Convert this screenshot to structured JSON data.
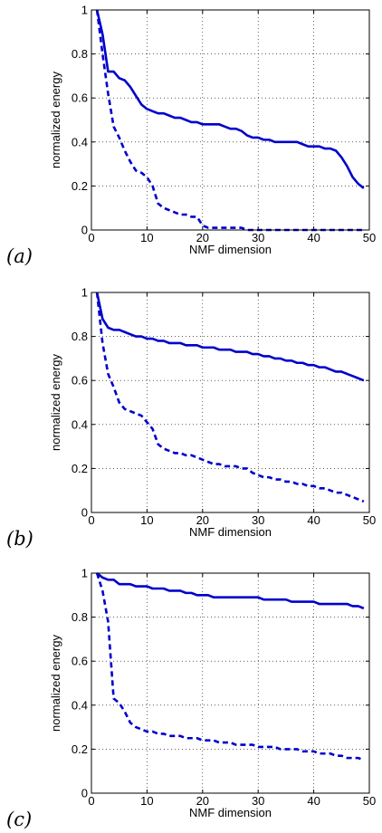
{
  "chart_data": [
    {
      "type": "line",
      "panel_label": "(a)",
      "xlabel": "NMF dimension",
      "ylabel": "normalized energy",
      "xlim": [
        0,
        50
      ],
      "ylim": [
        0,
        1
      ],
      "xticks": [
        "0",
        "10",
        "20",
        "30",
        "40",
        "50"
      ],
      "yticks": [
        "0",
        "0.2",
        "0.4",
        "0.6",
        "0.8",
        "1"
      ],
      "grid": true,
      "series": [
        {
          "style": "solid",
          "color": "#0000cc",
          "x": [
            1,
            2,
            3,
            4,
            5,
            6,
            7,
            8,
            9,
            10,
            11,
            12,
            13,
            14,
            15,
            16,
            17,
            18,
            19,
            20,
            21,
            22,
            23,
            24,
            25,
            26,
            27,
            28,
            29,
            30,
            31,
            32,
            33,
            34,
            35,
            36,
            37,
            38,
            39,
            40,
            41,
            42,
            43,
            44,
            45,
            46,
            47,
            48,
            49
          ],
          "values": [
            1.0,
            0.89,
            0.72,
            0.72,
            0.69,
            0.68,
            0.65,
            0.61,
            0.57,
            0.55,
            0.54,
            0.53,
            0.53,
            0.52,
            0.51,
            0.51,
            0.5,
            0.49,
            0.49,
            0.48,
            0.48,
            0.48,
            0.48,
            0.47,
            0.46,
            0.46,
            0.45,
            0.43,
            0.42,
            0.42,
            0.41,
            0.41,
            0.4,
            0.4,
            0.4,
            0.4,
            0.4,
            0.39,
            0.38,
            0.38,
            0.38,
            0.37,
            0.37,
            0.36,
            0.33,
            0.29,
            0.24,
            0.21,
            0.19
          ]
        },
        {
          "style": "dashed",
          "color": "#0000cc",
          "x": [
            1,
            2,
            3,
            4,
            5,
            6,
            7,
            8,
            9,
            10,
            11,
            12,
            13,
            14,
            15,
            16,
            17,
            18,
            19,
            20,
            21,
            22,
            23,
            24,
            25,
            26,
            27,
            28,
            29,
            30,
            31,
            32,
            33,
            34,
            35,
            36,
            37,
            38,
            39,
            40,
            41,
            42,
            43,
            44,
            45,
            46,
            47,
            48,
            49
          ],
          "values": [
            1.0,
            0.8,
            0.62,
            0.47,
            0.42,
            0.36,
            0.31,
            0.27,
            0.26,
            0.24,
            0.2,
            0.12,
            0.1,
            0.09,
            0.08,
            0.07,
            0.07,
            0.06,
            0.06,
            0.02,
            0.01,
            0.01,
            0.01,
            0.01,
            0.01,
            0.01,
            0.01,
            0.0,
            0.0,
            0.0,
            0.0,
            0.0,
            0.0,
            0.0,
            0.0,
            0.0,
            0.0,
            0.0,
            0.0,
            0.0,
            0.0,
            0.0,
            0.0,
            0.0,
            0.0,
            0.0,
            0.0,
            0.0,
            0.0
          ]
        }
      ]
    },
    {
      "type": "line",
      "panel_label": "(b)",
      "xlabel": "NMF dimension",
      "ylabel": "normalized energy",
      "xlim": [
        0,
        50
      ],
      "ylim": [
        0,
        1
      ],
      "xticks": [
        "0",
        "10",
        "20",
        "30",
        "40",
        "50"
      ],
      "yticks": [
        "0",
        "0.2",
        "0.4",
        "0.6",
        "0.8",
        "1"
      ],
      "grid": true,
      "series": [
        {
          "style": "solid",
          "color": "#0000cc",
          "x": [
            1,
            2,
            3,
            4,
            5,
            6,
            7,
            8,
            9,
            10,
            11,
            12,
            13,
            14,
            15,
            16,
            17,
            18,
            19,
            20,
            21,
            22,
            23,
            24,
            25,
            26,
            27,
            28,
            29,
            30,
            31,
            32,
            33,
            34,
            35,
            36,
            37,
            38,
            39,
            40,
            41,
            42,
            43,
            44,
            45,
            46,
            47,
            48,
            49
          ],
          "values": [
            1.0,
            0.88,
            0.84,
            0.83,
            0.83,
            0.82,
            0.81,
            0.8,
            0.8,
            0.79,
            0.79,
            0.78,
            0.78,
            0.77,
            0.77,
            0.77,
            0.76,
            0.76,
            0.76,
            0.75,
            0.75,
            0.75,
            0.74,
            0.74,
            0.74,
            0.73,
            0.73,
            0.73,
            0.72,
            0.72,
            0.71,
            0.71,
            0.7,
            0.7,
            0.69,
            0.69,
            0.68,
            0.68,
            0.67,
            0.67,
            0.66,
            0.66,
            0.65,
            0.64,
            0.64,
            0.63,
            0.62,
            0.61,
            0.6
          ]
        },
        {
          "style": "dashed",
          "color": "#0000cc",
          "x": [
            1,
            2,
            3,
            4,
            5,
            6,
            7,
            8,
            9,
            10,
            11,
            12,
            13,
            14,
            15,
            16,
            17,
            18,
            19,
            20,
            21,
            22,
            23,
            24,
            25,
            26,
            27,
            28,
            29,
            30,
            31,
            32,
            33,
            34,
            35,
            36,
            37,
            38,
            39,
            40,
            41,
            42,
            43,
            44,
            45,
            46,
            47,
            48,
            49
          ],
          "values": [
            1.0,
            0.77,
            0.63,
            0.57,
            0.5,
            0.47,
            0.46,
            0.45,
            0.44,
            0.41,
            0.38,
            0.31,
            0.29,
            0.28,
            0.27,
            0.27,
            0.26,
            0.26,
            0.25,
            0.24,
            0.23,
            0.22,
            0.22,
            0.21,
            0.21,
            0.21,
            0.2,
            0.2,
            0.18,
            0.17,
            0.16,
            0.16,
            0.15,
            0.15,
            0.14,
            0.14,
            0.13,
            0.13,
            0.12,
            0.12,
            0.11,
            0.11,
            0.1,
            0.09,
            0.09,
            0.08,
            0.07,
            0.06,
            0.05
          ]
        }
      ]
    },
    {
      "type": "line",
      "panel_label": "(c)",
      "xlabel": "NMF dimension",
      "ylabel": "normalized energy",
      "xlim": [
        0,
        50
      ],
      "ylim": [
        0,
        1
      ],
      "xticks": [
        "0",
        "10",
        "20",
        "30",
        "40",
        "50"
      ],
      "yticks": [
        "0",
        "0.2",
        "0.4",
        "0.6",
        "0.8",
        "1"
      ],
      "grid": true,
      "series": [
        {
          "style": "solid",
          "color": "#0000cc",
          "x": [
            1,
            2,
            3,
            4,
            5,
            6,
            7,
            8,
            9,
            10,
            11,
            12,
            13,
            14,
            15,
            16,
            17,
            18,
            19,
            20,
            21,
            22,
            23,
            24,
            25,
            26,
            27,
            28,
            29,
            30,
            31,
            32,
            33,
            34,
            35,
            36,
            37,
            38,
            39,
            40,
            41,
            42,
            43,
            44,
            45,
            46,
            47,
            48,
            49
          ],
          "values": [
            1.0,
            0.98,
            0.97,
            0.97,
            0.95,
            0.95,
            0.95,
            0.94,
            0.94,
            0.94,
            0.93,
            0.93,
            0.93,
            0.92,
            0.92,
            0.92,
            0.91,
            0.91,
            0.9,
            0.9,
            0.9,
            0.89,
            0.89,
            0.89,
            0.89,
            0.89,
            0.89,
            0.89,
            0.89,
            0.89,
            0.88,
            0.88,
            0.88,
            0.88,
            0.88,
            0.87,
            0.87,
            0.87,
            0.87,
            0.87,
            0.86,
            0.86,
            0.86,
            0.86,
            0.86,
            0.86,
            0.85,
            0.85,
            0.84
          ]
        },
        {
          "style": "dashed",
          "color": "#0000cc",
          "x": [
            1,
            2,
            3,
            4,
            5,
            6,
            7,
            8,
            9,
            10,
            11,
            12,
            13,
            14,
            15,
            16,
            17,
            18,
            19,
            20,
            21,
            22,
            23,
            24,
            25,
            26,
            27,
            28,
            29,
            30,
            31,
            32,
            33,
            34,
            35,
            36,
            37,
            38,
            39,
            40,
            41,
            42,
            43,
            44,
            45,
            46,
            47,
            48,
            49
          ],
          "values": [
            1.0,
            0.92,
            0.78,
            0.43,
            0.41,
            0.37,
            0.32,
            0.3,
            0.29,
            0.28,
            0.28,
            0.27,
            0.27,
            0.26,
            0.26,
            0.26,
            0.25,
            0.25,
            0.25,
            0.24,
            0.24,
            0.24,
            0.23,
            0.23,
            0.23,
            0.22,
            0.22,
            0.22,
            0.22,
            0.21,
            0.21,
            0.21,
            0.21,
            0.2,
            0.2,
            0.2,
            0.2,
            0.19,
            0.19,
            0.19,
            0.18,
            0.18,
            0.18,
            0.17,
            0.17,
            0.16,
            0.16,
            0.16,
            0.15
          ]
        }
      ]
    }
  ]
}
